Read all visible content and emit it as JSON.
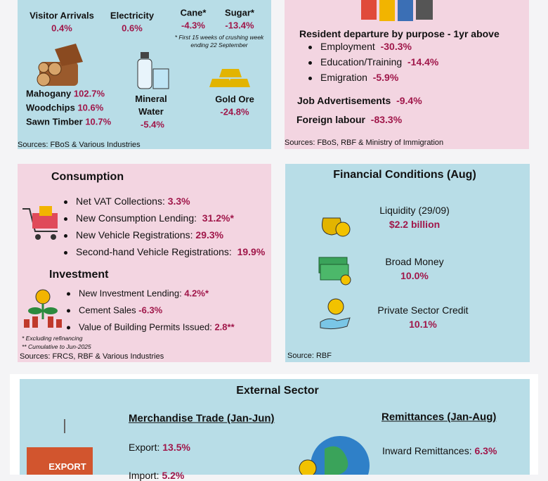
{
  "activity": {
    "top": [
      {
        "label": "Visitor Arrivals",
        "value": "0.4%"
      },
      {
        "label": "Electricity",
        "value": "0.6%"
      },
      {
        "label": "Cane*",
        "value": "-4.3%"
      },
      {
        "label": "Sugar*",
        "value": "-13.4%"
      }
    ],
    "note": "* First 15 weeks of crushing week ending 22 September",
    "timber": [
      {
        "label": "Mahogany",
        "value": "102.7%"
      },
      {
        "label": "Woodchips",
        "value": "10.6%"
      },
      {
        "label": "Sawn Timber",
        "value": "10.7%"
      }
    ],
    "mineral_water": {
      "label": "Mineral Water",
      "value": "-5.4%"
    },
    "gold_ore": {
      "label": "Gold Ore",
      "value": "-24.8%"
    },
    "source": "Sources: FBoS &  Various Industries"
  },
  "labour": {
    "title": "Resident departure by purpose - 1yr above",
    "items": [
      {
        "label": "Employment",
        "value": "-30.3%"
      },
      {
        "label": "Education/Training",
        "value": "-14.4%"
      },
      {
        "label": "Emigration",
        "value": "-5.9%"
      }
    ],
    "job_ads": {
      "label": "Job Advertisements",
      "value": "-9.4%"
    },
    "foreign_labour": {
      "label": "Foreign labour",
      "value": "-83.3%"
    },
    "source": "Sources: FBoS, RBF & Ministry of Immigration"
  },
  "consumption": {
    "title": "Consumption",
    "items": [
      {
        "label": "Net VAT Collections:",
        "value": "3.3%"
      },
      {
        "label": "New Consumption Lending:",
        "value": "31.2%*"
      },
      {
        "label": "New Vehicle Registrations:",
        "value": "29.3%"
      },
      {
        "label": "Second-hand Vehicle Registrations:",
        "value": "19.9%"
      }
    ]
  },
  "investment": {
    "title": "Investment",
    "items": [
      {
        "label": "New Investment Lending:",
        "value": "4.2%*"
      },
      {
        "label": "Cement Sales",
        "value": "-6.3%"
      },
      {
        "label": "Value of Building Permits Issued:",
        "value": "2.8**"
      }
    ],
    "notes": [
      "* Excluding refinancing",
      "** Cumulative to Jun-2025"
    ],
    "source": "Sources: FRCS, RBF & Various Industries"
  },
  "financial": {
    "title": "Financial Conditions (Aug)",
    "items": [
      {
        "label": "Liquidity (29/09)",
        "value": "$2.2 billion"
      },
      {
        "label": "Broad Money",
        "value": "10.0%"
      },
      {
        "label": "Private Sector Credit",
        "value": "10.1%"
      }
    ],
    "source": "Source: RBF"
  },
  "external": {
    "title": "External Sector",
    "container": "EXPORT",
    "trade_title": "Merchandise Trade (Jan-Jun)",
    "trade": [
      {
        "label": "Export:",
        "value": "13.5%"
      },
      {
        "label": "Import:",
        "value": "5.2%"
      }
    ],
    "remit_title": "Remittances (Jan-Aug)",
    "remit": [
      {
        "label": "Inward Remittances:",
        "value": "6.3%"
      }
    ]
  }
}
